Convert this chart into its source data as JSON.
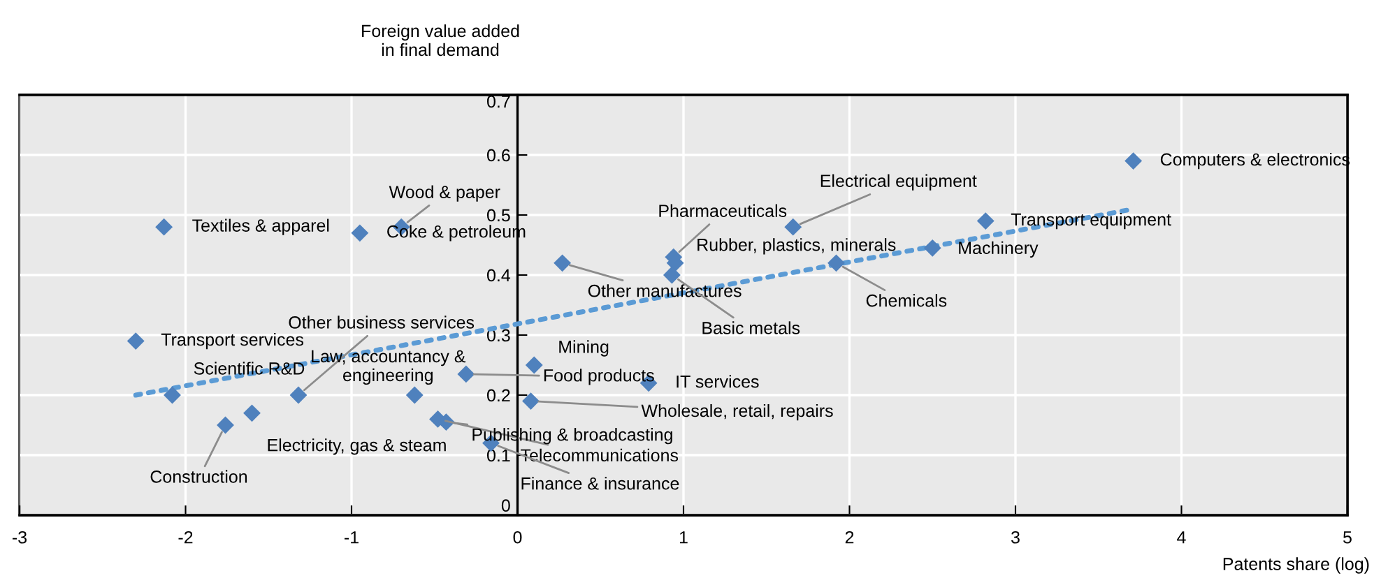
{
  "chart_data": {
    "type": "scatter",
    "xlabel": "Patents share (log)",
    "ylabel": "Foreign value added\nin final demand",
    "xlim": [
      -3,
      5
    ],
    "ylim": [
      0,
      0.7
    ],
    "xticks": [
      -3,
      -2,
      -1,
      0,
      1,
      2,
      3,
      4,
      5
    ],
    "yticks": [
      0,
      0.1,
      0.2,
      0.3,
      0.4,
      0.5,
      0.6,
      0.7
    ],
    "grid": true,
    "series": [
      {
        "type": "scatter",
        "color": "#4f81bd",
        "marker": "diamond",
        "x": [
          -2.13,
          -0.95,
          -0.7,
          -2.3,
          -2.08,
          -1.76,
          -1.6,
          -1.32,
          -0.62,
          -0.48,
          -0.43,
          -0.16,
          -0.31,
          0.1,
          0.08,
          0.79,
          0.27,
          0.94,
          0.95,
          0.93,
          1.66,
          1.92,
          2.5,
          2.82,
          3.71
        ],
        "values": [
          0.48,
          0.47,
          0.48,
          0.29,
          0.2,
          0.15,
          0.17,
          0.2,
          0.2,
          0.16,
          0.155,
          0.12,
          0.235,
          0.25,
          0.19,
          0.22,
          0.42,
          0.43,
          0.42,
          0.4,
          0.48,
          0.42,
          0.445,
          0.49,
          0.59
        ]
      },
      {
        "type": "line",
        "color": "#5b9bd5",
        "line_style": "dotted",
        "marker": "none",
        "x": [
          -2.3,
          3.71
        ],
        "values": [
          0.2,
          0.51
        ]
      }
    ],
    "annotations": [
      {
        "text": "Textiles & apparel",
        "x": -2.13,
        "y": 0.48
      },
      {
        "text": "Coke & petroleum",
        "x": -0.95,
        "y": 0.47
      },
      {
        "text": "Wood & paper",
        "x": -0.7,
        "y": 0.48
      },
      {
        "text": "Transport services",
        "x": -2.3,
        "y": 0.29
      },
      {
        "text": "Scientific R&D",
        "x": -2.08,
        "y": 0.2
      },
      {
        "text": "Construction",
        "x": -1.76,
        "y": 0.15
      },
      {
        "text": "Electricity, gas & steam",
        "x": -1.6,
        "y": 0.17
      },
      {
        "text": "Other business services",
        "x": -1.32,
        "y": 0.2
      },
      {
        "text": "Law, accountancy &\nengineering",
        "x": -0.62,
        "y": 0.2
      },
      {
        "text": "Telecommunications",
        "x": -0.48,
        "y": 0.16
      },
      {
        "text": "Publishing & broadcasting",
        "x": -0.43,
        "y": 0.155
      },
      {
        "text": "Finance & insurance",
        "x": -0.16,
        "y": 0.12
      },
      {
        "text": "Food products",
        "x": -0.31,
        "y": 0.235
      },
      {
        "text": "Mining",
        "x": 0.1,
        "y": 0.25
      },
      {
        "text": "Wholesale, retail, repairs",
        "x": 0.08,
        "y": 0.19
      },
      {
        "text": "IT services",
        "x": 0.79,
        "y": 0.22
      },
      {
        "text": "Other manufactures",
        "x": 0.27,
        "y": 0.42
      },
      {
        "text": "Pharmaceuticals",
        "x": 0.94,
        "y": 0.43
      },
      {
        "text": "Rubber, plastics, minerals",
        "x": 0.95,
        "y": 0.42
      },
      {
        "text": "Basic metals",
        "x": 0.93,
        "y": 0.4
      },
      {
        "text": "Electrical equipment",
        "x": 1.66,
        "y": 0.48
      },
      {
        "text": "Chemicals",
        "x": 1.92,
        "y": 0.42
      },
      {
        "text": "Machinery",
        "x": 2.5,
        "y": 0.445
      },
      {
        "text": "Transport equipment",
        "x": 2.82,
        "y": 0.49
      },
      {
        "text": "Computers & electronics",
        "x": 3.71,
        "y": 0.59
      }
    ]
  }
}
